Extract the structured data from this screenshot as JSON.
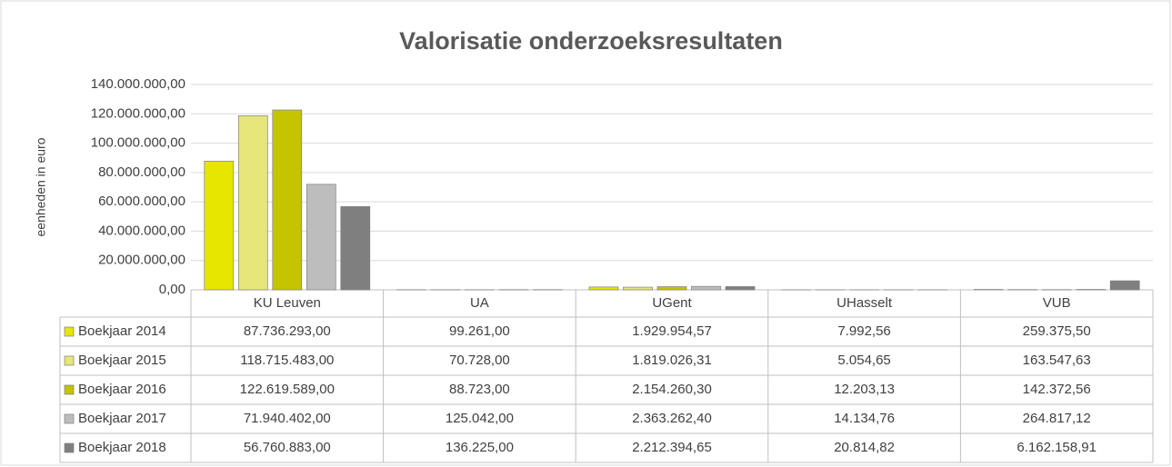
{
  "chart_data": {
    "type": "bar",
    "title": "Valorisatie onderzoeksresultaten",
    "y_label": "eenheden in euro",
    "categories": [
      "KU Leuven",
      "UA",
      "UGent",
      "UHasselt",
      "VUB"
    ],
    "series": [
      {
        "name": "Boekjaar 2014",
        "color": "#e6e600",
        "values": [
          87736293.0,
          99261.0,
          1929954.57,
          7992.56,
          259375.5
        ],
        "value_labels": [
          "87.736.293,00",
          "99.261,00",
          "1.929.954,57",
          "7.992,56",
          "259.375,50"
        ]
      },
      {
        "name": "Boekjaar 2015",
        "color": "#e6e67a",
        "values": [
          118715483.0,
          70728.0,
          1819026.31,
          5054.65,
          163547.63
        ],
        "value_labels": [
          "118.715.483,00",
          "70.728,00",
          "1.819.026,31",
          "5.054,65",
          "163.547,63"
        ]
      },
      {
        "name": "Boekjaar 2016",
        "color": "#c4c400",
        "values": [
          122619589.0,
          88723.0,
          2154260.3,
          12203.13,
          142372.56
        ],
        "value_labels": [
          "122.619.589,00",
          "88.723,00",
          "2.154.260,30",
          "12.203,13",
          "142.372,56"
        ]
      },
      {
        "name": "Boekjaar 2017",
        "color": "#bdbdbd",
        "values": [
          71940402.0,
          125042.0,
          2363262.4,
          14134.76,
          264817.12
        ],
        "value_labels": [
          "71.940.402,00",
          "125.042,00",
          "2.363.262,40",
          "14.134,76",
          "264.817,12"
        ]
      },
      {
        "name": "Boekjaar 2018",
        "color": "#7f7f7f",
        "values": [
          56760883.0,
          136225.0,
          2212394.65,
          20814.82,
          6162158.91
        ],
        "value_labels": [
          "56.760.883,00",
          "136.225,00",
          "2.212.394,65",
          "20.814,82",
          "6.162.158,91"
        ]
      }
    ],
    "ylim": [
      0,
      140000000
    ],
    "yticks": [
      {
        "value": 0,
        "label": "0,00"
      },
      {
        "value": 20000000,
        "label": "20.000.000,00"
      },
      {
        "value": 40000000,
        "label": "40.000.000,00"
      },
      {
        "value": 60000000,
        "label": "60.000.000,00"
      },
      {
        "value": 80000000,
        "label": "80.000.000,00"
      },
      {
        "value": 100000000,
        "label": "100.000.000,00"
      },
      {
        "value": 120000000,
        "label": "120.000.000,00"
      },
      {
        "value": 140000000,
        "label": "140.000.000,00"
      }
    ],
    "grid": true
  }
}
